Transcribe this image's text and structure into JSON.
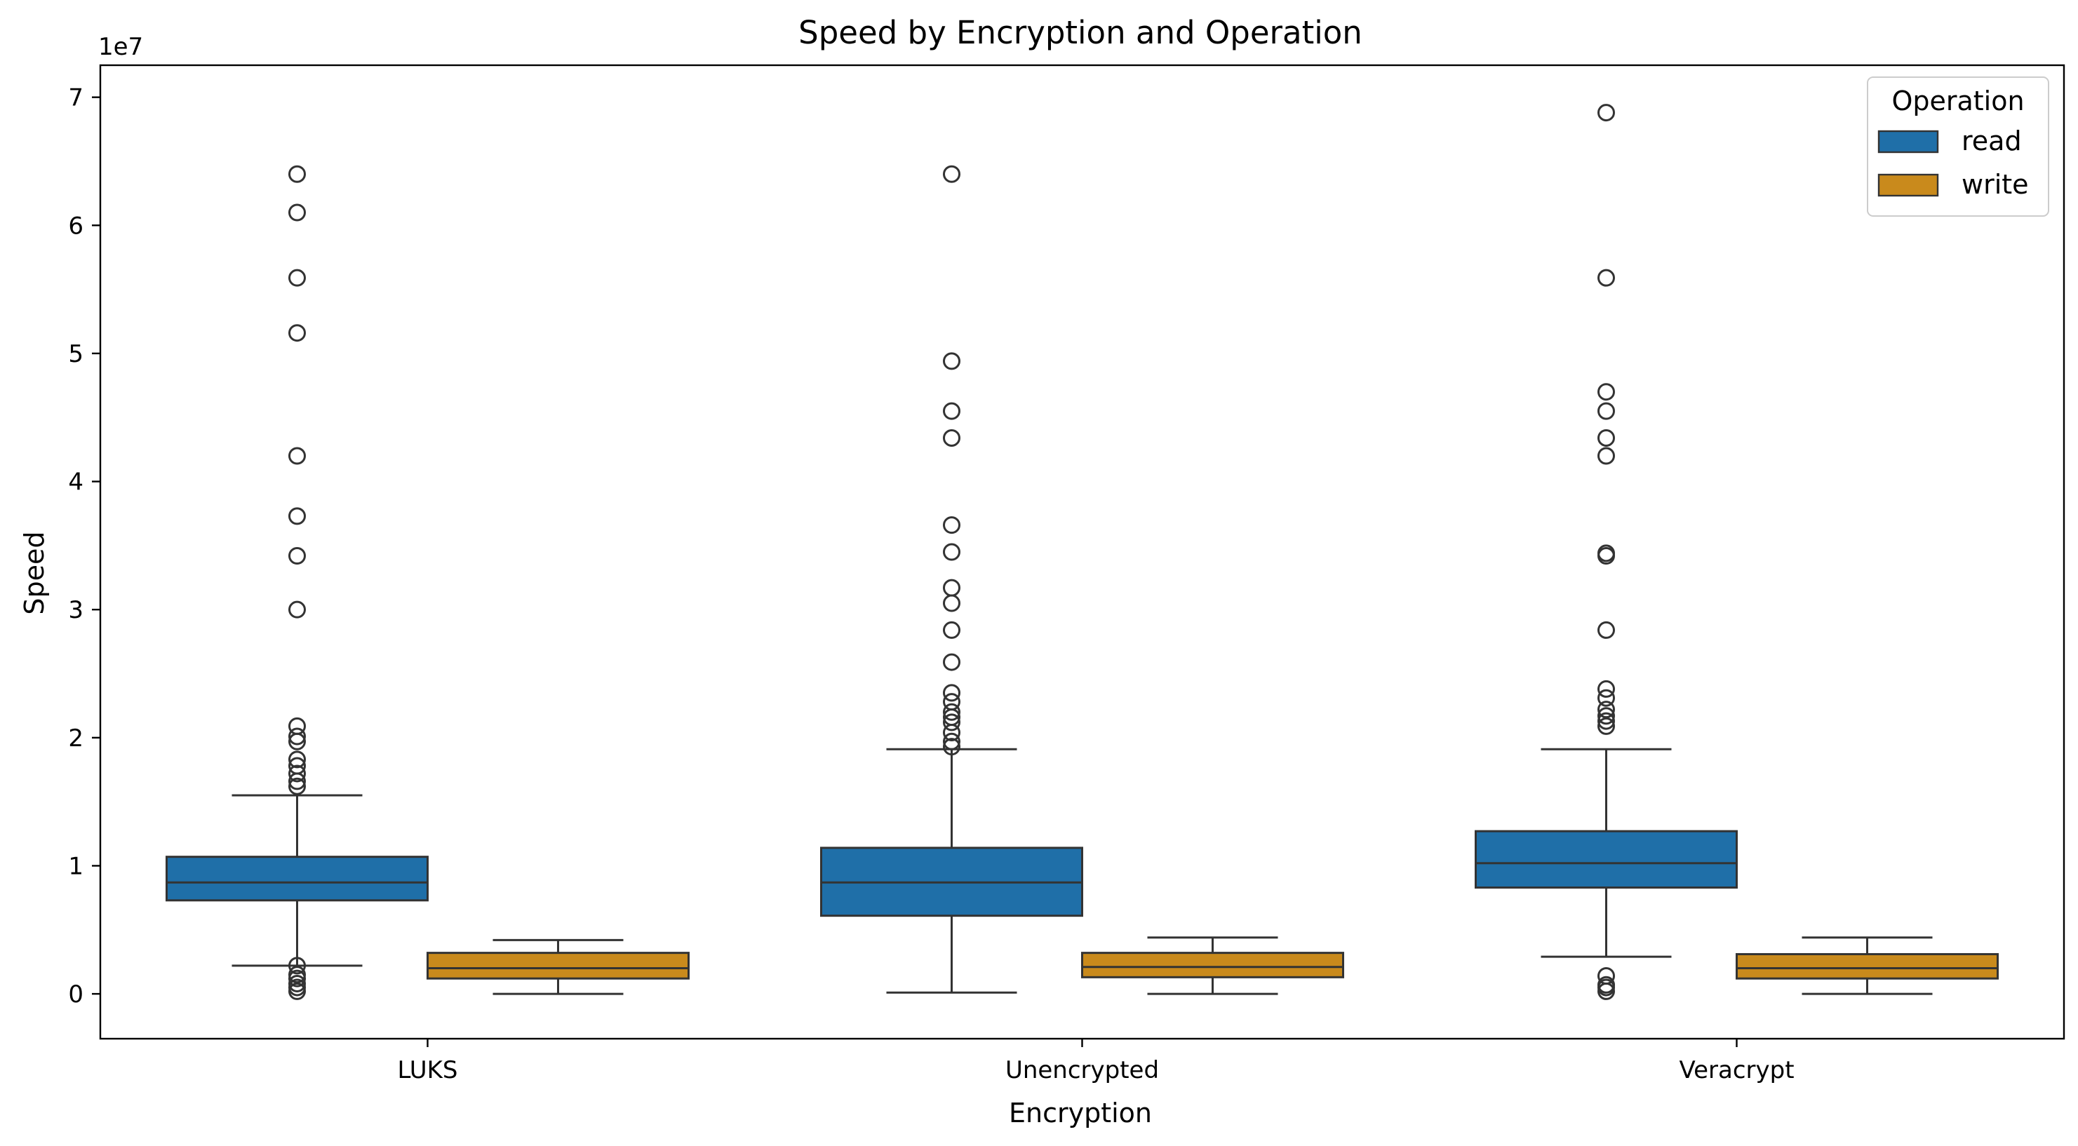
{
  "chart_data": {
    "type": "box",
    "title": "Speed by Encryption and Operation",
    "xlabel": "Encryption",
    "ylabel": "Speed",
    "y_offset_label": "1e7",
    "y_scale": 10000000,
    "ylim": [
      -0.35,
      7.25
    ],
    "yticks": [
      0,
      1,
      2,
      3,
      4,
      5,
      6,
      7
    ],
    "categories": [
      "LUKS",
      "Unencrypted",
      "Veracrypt"
    ],
    "legend": {
      "title": "Operation",
      "placement": "upper right"
    },
    "series": [
      {
        "name": "read",
        "color": "#1f6fa8",
        "boxes": [
          {
            "whisker_low": 0.22,
            "q1": 0.73,
            "median": 0.87,
            "q3": 1.07,
            "whisker_high": 1.55,
            "outliers": [
              0.02,
              0.05,
              0.08,
              0.12,
              0.15,
              0.22,
              1.62,
              1.66,
              1.72,
              1.78,
              1.83,
              1.97,
              2.01,
              2.09,
              3.0,
              3.42,
              3.73,
              4.2,
              5.16,
              5.59,
              6.1,
              6.4
            ]
          },
          {
            "whisker_low": 0.01,
            "q1": 0.61,
            "median": 0.87,
            "q3": 1.14,
            "whisker_high": 1.91,
            "outliers": [
              1.93,
              1.97,
              2.04,
              2.12,
              2.16,
              2.2,
              2.28,
              2.35,
              2.59,
              2.84,
              3.05,
              3.17,
              3.45,
              3.66,
              4.34,
              4.55,
              4.94,
              6.4
            ]
          },
          {
            "whisker_low": 0.29,
            "q1": 0.83,
            "median": 1.02,
            "q3": 1.27,
            "whisker_high": 1.91,
            "outliers": [
              0.02,
              0.05,
              0.07,
              0.14,
              2.09,
              2.13,
              2.17,
              2.22,
              2.31,
              2.38,
              2.84,
              3.42,
              3.44,
              4.2,
              4.34,
              4.55,
              4.7,
              5.59,
              6.88
            ]
          }
        ]
      },
      {
        "name": "write",
        "color": "#c98a1c",
        "boxes": [
          {
            "whisker_low": 0.0,
            "q1": 0.12,
            "median": 0.2,
            "q3": 0.32,
            "whisker_high": 0.42,
            "outliers": []
          },
          {
            "whisker_low": 0.0,
            "q1": 0.13,
            "median": 0.21,
            "q3": 0.32,
            "whisker_high": 0.44,
            "outliers": []
          },
          {
            "whisker_low": 0.0,
            "q1": 0.12,
            "median": 0.2,
            "q3": 0.31,
            "whisker_high": 0.44,
            "outliers": []
          }
        ]
      }
    ]
  }
}
